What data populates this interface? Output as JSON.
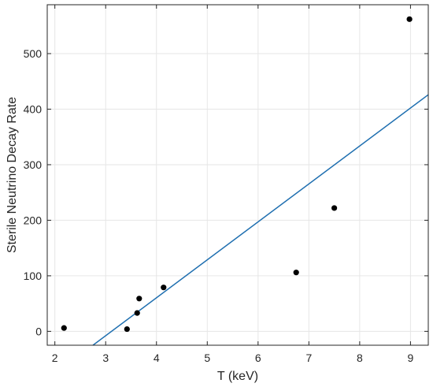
{
  "chart_data": {
    "type": "scatter",
    "title": "",
    "xlabel": "T (keV)",
    "ylabel": "Sterile Neutrino Decay Rate",
    "xlim": [
      1.85,
      9.35
    ],
    "ylim": [
      -25,
      588
    ],
    "xticks": [
      2,
      3,
      4,
      5,
      6,
      7,
      8,
      9
    ],
    "yticks": [
      0,
      100,
      200,
      300,
      400,
      500
    ],
    "grid": true,
    "series": [
      {
        "type": "scatter",
        "color": "#000000",
        "points": [
          {
            "x": 2.18,
            "y": 6
          },
          {
            "x": 3.42,
            "y": 4
          },
          {
            "x": 3.62,
            "y": 33
          },
          {
            "x": 3.66,
            "y": 59
          },
          {
            "x": 4.14,
            "y": 79
          },
          {
            "x": 6.75,
            "y": 106
          },
          {
            "x": 7.5,
            "y": 222
          },
          {
            "x": 8.98,
            "y": 562
          }
        ]
      },
      {
        "type": "line",
        "color": "#1f6fb0",
        "fit": {
          "x": [
            2.75,
            9.35
          ],
          "y": [
            -25,
            426
          ]
        }
      }
    ]
  }
}
